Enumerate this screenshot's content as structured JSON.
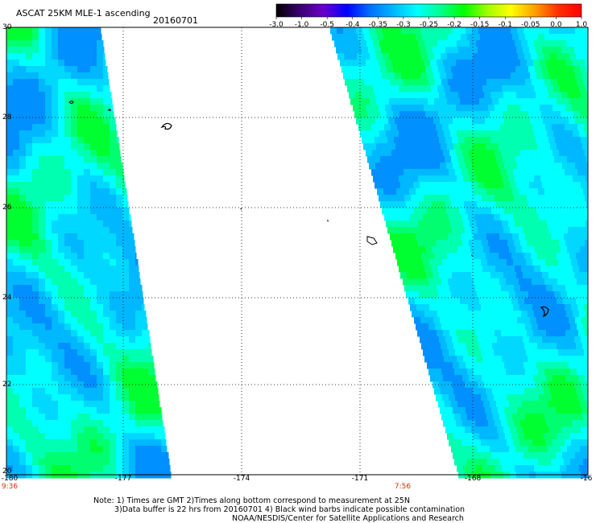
{
  "header": {
    "title": "ASCAT 25KM MLE-1 ascending",
    "date": "20160701"
  },
  "colorbar": {
    "labels": [
      "-3.0",
      "-1.0",
      "-0.5",
      "-0.4",
      "-0.35",
      "-0.3",
      "-0.25",
      "-0.2",
      "-0.15",
      "-0.1",
      "-0.05",
      "0.0",
      "1.0"
    ],
    "colors": [
      "#000000",
      "#3a0070",
      "#6a00c8",
      "#0000ff",
      "#0070ff",
      "#00b8ff",
      "#00ffff",
      "#00ff90",
      "#00ff00",
      "#a0ff00",
      "#ffff00",
      "#ffa000",
      "#ff3000",
      "#ff0000"
    ]
  },
  "axes": {
    "lat_labels": [
      "30",
      "28",
      "26",
      "24",
      "22",
      "20"
    ],
    "lon_labels": [
      "-180",
      "-177",
      "-174",
      "-171",
      "-168",
      "-16"
    ]
  },
  "pass_times": {
    "left": "9:36",
    "right": "7:56"
  },
  "notes": {
    "line1": "Note: 1) Times are GMT 2)Times along bottom correspond to measurement at 25N",
    "line2": "3)Data buffer is 22 hrs from 20160701 4) Black wind barbs indicate possible contamination",
    "line3": "NOAA/NESDIS/Center for Satellite Applications and Research"
  },
  "map": {
    "ocean_color": "#00ffff",
    "field_colors": [
      "#00ffff",
      "#00d8ff",
      "#00b8ff",
      "#0090ff",
      "#00ffb0",
      "#00ff70",
      "#00ff30"
    ],
    "islands_color": "#000000"
  }
}
